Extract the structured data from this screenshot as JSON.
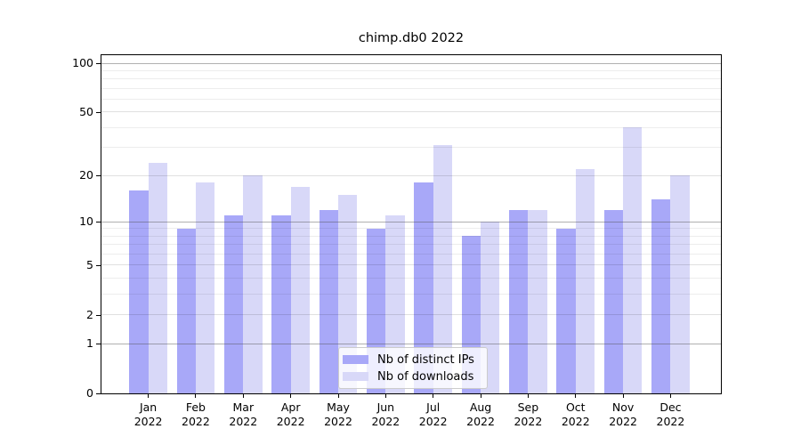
{
  "chart_data": {
    "type": "bar",
    "title": "chimp.db0 2022",
    "categories": [
      "Jan",
      "Feb",
      "Mar",
      "Apr",
      "May",
      "Jun",
      "Jul",
      "Aug",
      "Sep",
      "Oct",
      "Nov",
      "Dec"
    ],
    "category_year": "2022",
    "series": [
      {
        "name": "Nb of distinct IPs",
        "color": "#a8a8f8",
        "values": [
          16,
          9,
          11,
          11,
          12,
          9,
          18,
          8,
          12,
          9,
          12,
          14
        ]
      },
      {
        "name": "Nb of downloads",
        "color": "#d8d8f8",
        "values": [
          24,
          18,
          20,
          17,
          15,
          11,
          31,
          10,
          12,
          22,
          40,
          20
        ]
      }
    ],
    "yscale": "log1p",
    "ylim": [
      0,
      112
    ],
    "yticks": [
      0,
      1,
      2,
      5,
      10,
      20,
      50,
      100
    ],
    "decade_gridlines": [
      1,
      10,
      100
    ],
    "minor_gridlines": [
      3,
      4,
      6,
      7,
      8,
      9,
      30,
      40,
      60,
      70,
      80,
      90
    ],
    "grid": true,
    "legend_position": "lower center",
    "legend_entries": [
      "Nb of distinct IPs",
      "Nb of downloads"
    ],
    "colors": {
      "background": "#ffffff",
      "axis": "#000000",
      "bar_distinct_ips": "#a8a8f8",
      "bar_downloads": "#d8d8f8",
      "grid_decade": "rgba(80,80,80,0.45)",
      "grid_labeled": "rgba(0,0,0,0.12)",
      "grid_minor": "rgba(0,0,0,0.07)",
      "legend_bg": "rgba(255,255,255,0.8)",
      "legend_border": "#cccccc"
    }
  }
}
